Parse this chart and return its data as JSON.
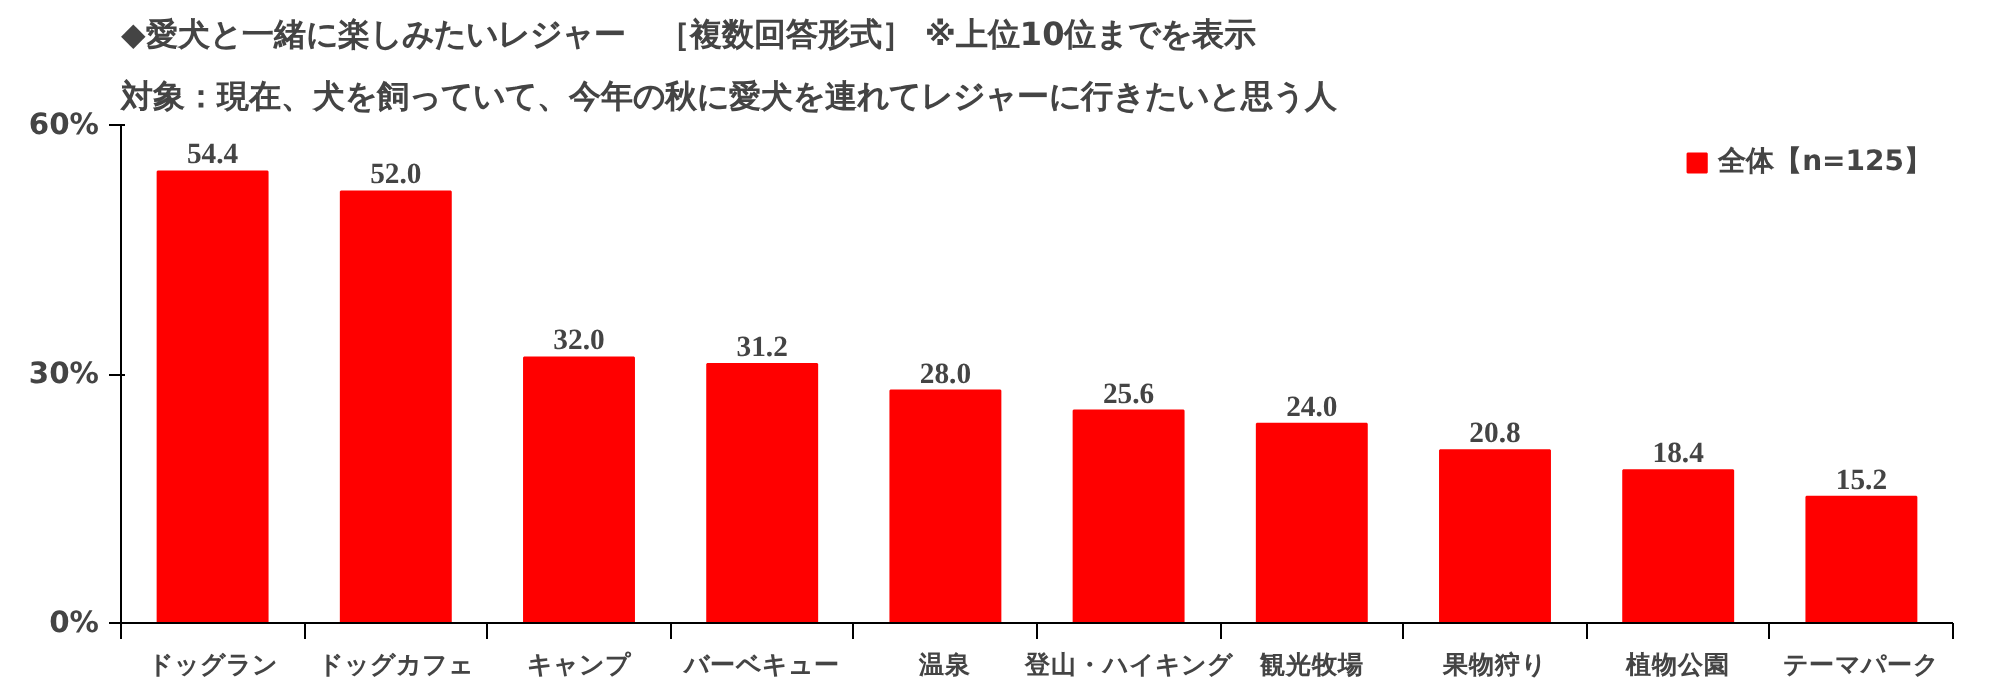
{
  "chart_data": {
    "type": "bar",
    "title": "◆愛犬と一緒に楽しみたいレジャー　［複数回答形式］ ※上位10位までを表示",
    "subtitle": "対象：現在、犬を飼っていて、今年の秋に愛犬を連れてレジャーに行きたいと思う人",
    "categories": [
      "ドッグラン",
      "ドッグカフェ",
      "キャンプ",
      "バーベキュー",
      "温泉",
      "登山・ハイキング",
      "観光牧場",
      "果物狩り",
      "植物公園",
      "テーマパーク"
    ],
    "series": [
      {
        "name": "全体【n=125】",
        "color": "#ff0000",
        "values": [
          54.4,
          52.0,
          32.0,
          31.2,
          28.0,
          25.6,
          24.0,
          20.8,
          18.4,
          15.2
        ],
        "value_labels": [
          "54.4",
          "52.0",
          "32.0",
          "31.2",
          "28.0",
          "25.6",
          "24.0",
          "20.8",
          "18.4",
          "15.2"
        ]
      }
    ],
    "ylim": [
      0,
      60
    ],
    "yticks": [
      {
        "value": 0,
        "label": "0%"
      },
      {
        "value": 30,
        "label": "30%"
      },
      {
        "value": 60,
        "label": "60%"
      }
    ],
    "grid": false,
    "legend": "top right"
  }
}
